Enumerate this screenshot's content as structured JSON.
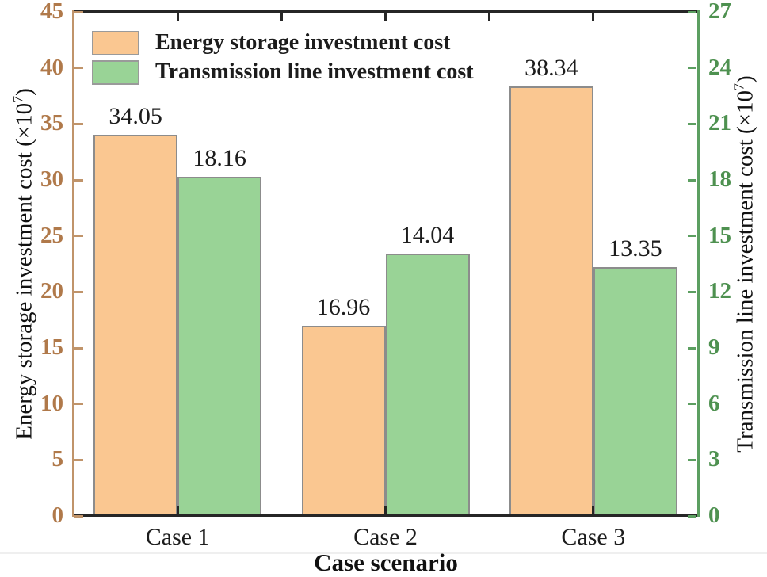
{
  "chart_data": {
    "type": "bar",
    "title": "",
    "categories": [
      "Case 1",
      "Case 2",
      "Case 3"
    ],
    "series": [
      {
        "name": "Energy storage investment cost",
        "axis": "left",
        "values": [
          34.05,
          16.96,
          38.34
        ],
        "color": "#FAC791",
        "edge_color": "#8C8C8C"
      },
      {
        "name": "Transmission line investment cost",
        "axis": "right",
        "values": [
          18.16,
          14.04,
          13.35
        ],
        "color": "#99D396",
        "edge_color": "#8C8C8C"
      }
    ],
    "xlabel": "Case scenario",
    "left_axis": {
      "label_prefix": "Energy storage investment cost (×10",
      "exponent": "7",
      "label_suffix": ")",
      "range": [
        0,
        45
      ],
      "ticks": [
        0,
        5,
        10,
        15,
        20,
        25,
        30,
        35,
        40,
        45
      ],
      "label_color": "#B0794A",
      "spine_color": "#C0946A"
    },
    "right_axis": {
      "label_prefix": "Transmission line investment cost (×10",
      "exponent": "7",
      "label_suffix": ")",
      "range": [
        0,
        27
      ],
      "ticks": [
        0,
        3,
        6,
        9,
        12,
        15,
        18,
        21,
        24,
        27
      ],
      "label_color": "#4E9150",
      "spine_color": "#5C9F61"
    },
    "top_bottom_spine_color": "#262626",
    "grid": false,
    "legend_position": "top-left",
    "value_label_color": "#1c1c1c"
  }
}
